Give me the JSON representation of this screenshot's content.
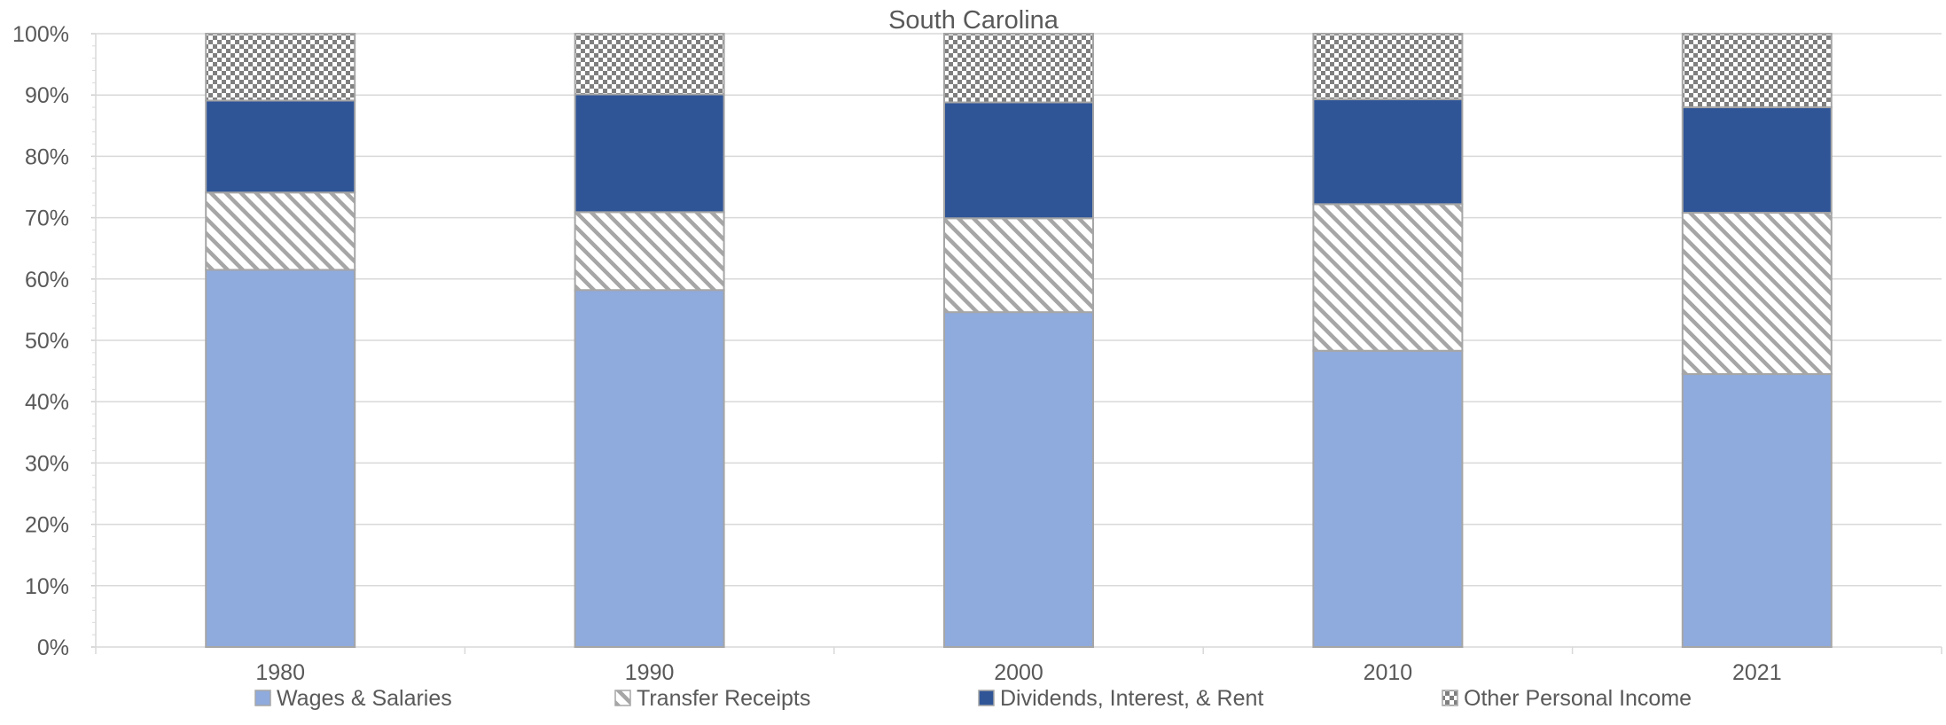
{
  "chart_data": {
    "type": "bar",
    "stacked": true,
    "percent": true,
    "title": "South Carolina",
    "categories": [
      "1980",
      "1990",
      "2000",
      "2010",
      "2021"
    ],
    "series": [
      {
        "name": "Wages & Salaries",
        "values": [
          61.5,
          58.2,
          54.6,
          48.3,
          44.5
        ],
        "color": "#8faadc",
        "pattern": "solid"
      },
      {
        "name": "Transfer Receipts",
        "values": [
          12.6,
          12.7,
          15.3,
          23.9,
          26.3
        ],
        "color": "#a6a6a6",
        "pattern": "diagonal-stripes"
      },
      {
        "name": "Dividends, Interest, & Rent",
        "values": [
          15.0,
          19.2,
          18.9,
          17.1,
          17.2
        ],
        "color": "#2f5597",
        "pattern": "solid"
      },
      {
        "name": "Other Personal Income",
        "values": [
          10.9,
          9.9,
          11.2,
          10.7,
          12.0
        ],
        "color": "#7f7f7f",
        "pattern": "checkerboard"
      }
    ],
    "ylim": [
      0,
      100
    ],
    "yticks": [
      "0%",
      "10%",
      "20%",
      "30%",
      "40%",
      "50%",
      "60%",
      "70%",
      "80%",
      "90%",
      "100%"
    ],
    "grid": true,
    "legend_position": "bottom"
  }
}
